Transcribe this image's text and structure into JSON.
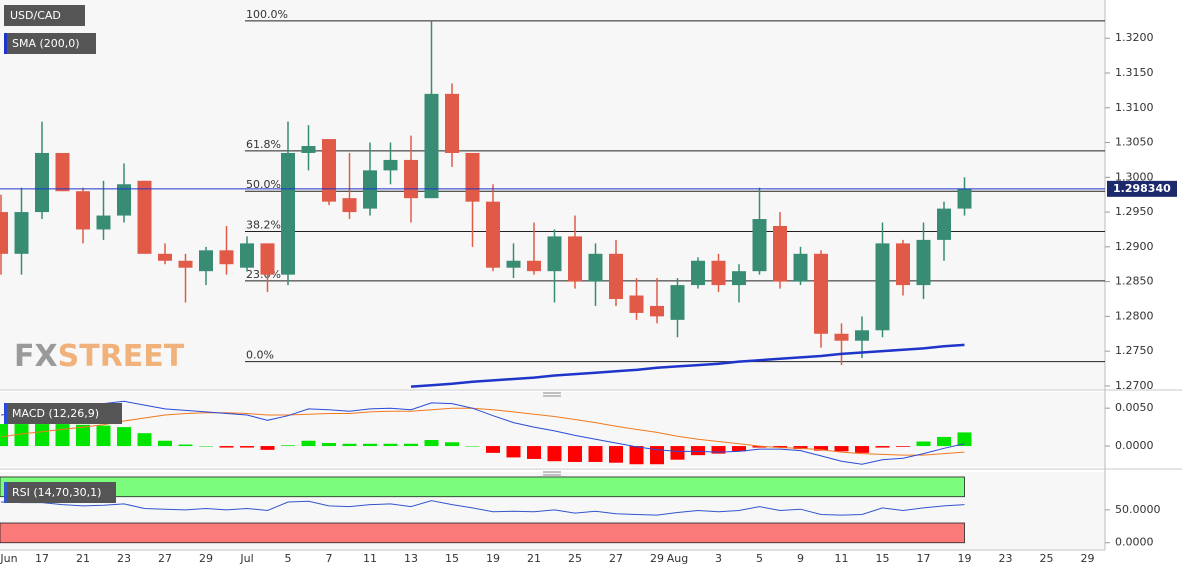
{
  "chart_data": [
    {
      "type": "candlestick",
      "title": "USD/CAD",
      "categories": [
        "Jun",
        null,
        "17",
        null,
        "21",
        null,
        "23",
        null,
        "27",
        null,
        "29",
        null,
        "Jul",
        null,
        "5",
        null,
        "7",
        null,
        "11",
        null,
        "13",
        null,
        "15",
        null,
        "19",
        null,
        "21",
        null,
        "25",
        null,
        "27",
        null,
        "29",
        "Aug",
        null,
        "3",
        null,
        "5",
        null,
        "9",
        null,
        "11",
        null,
        "15",
        null,
        "17",
        null,
        "19",
        null,
        "23",
        null,
        "25",
        null,
        "29"
      ],
      "open": [
        1.295,
        1.289,
        1.295,
        1.3035,
        1.298,
        1.2925,
        1.2945,
        1.2995,
        1.289,
        1.288,
        1.2865,
        1.2895,
        1.287,
        1.2905,
        1.286,
        1.3035,
        1.3055,
        1.297,
        1.2955,
        1.301,
        1.3025,
        1.297,
        1.312,
        1.3035,
        1.2965,
        1.287,
        1.288,
        1.2865,
        1.2915,
        1.285,
        1.289,
        1.283,
        1.2815,
        1.2795,
        1.2845,
        1.288,
        1.2845,
        1.2865,
        1.293,
        1.285,
        1.289,
        1.2775,
        1.2765,
        1.278,
        1.2905,
        1.2845,
        1.291,
        1.2955,
        null,
        null,
        null,
        null,
        null,
        null
      ],
      "high": [
        1.2975,
        1.2985,
        1.308,
        1.3035,
        1.2985,
        1.2995,
        1.302,
        1.2995,
        1.2905,
        1.289,
        1.29,
        1.293,
        1.2915,
        1.2905,
        1.308,
        1.3075,
        1.3055,
        1.3035,
        1.305,
        1.305,
        1.306,
        1.3225,
        1.3135,
        1.3035,
        1.299,
        1.2905,
        1.2935,
        1.2925,
        1.2945,
        1.2905,
        1.291,
        1.2855,
        1.2855,
        1.2855,
        1.2885,
        1.289,
        1.2875,
        1.2985,
        1.295,
        1.29,
        1.2895,
        1.279,
        1.28,
        1.2935,
        1.291,
        1.2935,
        1.2965,
        1.3,
        null,
        null,
        null,
        null,
        null,
        null
      ],
      "low": [
        1.286,
        1.286,
        1.294,
        1.298,
        1.2905,
        1.291,
        1.2935,
        1.289,
        1.2875,
        1.282,
        1.2845,
        1.286,
        1.2865,
        1.2835,
        1.2845,
        1.301,
        1.296,
        1.294,
        1.2945,
        1.299,
        1.2935,
        1.297,
        1.3015,
        1.29,
        1.2865,
        1.2855,
        1.286,
        1.282,
        1.284,
        1.2815,
        1.2815,
        1.2795,
        1.279,
        1.277,
        1.284,
        1.2835,
        1.282,
        1.286,
        1.284,
        1.2845,
        1.2755,
        1.273,
        1.274,
        1.277,
        1.283,
        1.2825,
        1.288,
        1.2945,
        null,
        null,
        null,
        null,
        null,
        null
      ],
      "close": [
        1.289,
        1.295,
        1.3035,
        1.298,
        1.2925,
        1.2945,
        1.299,
        1.289,
        1.288,
        1.287,
        1.2895,
        1.2875,
        1.2905,
        1.286,
        1.3035,
        1.3045,
        1.2965,
        1.295,
        1.301,
        1.3025,
        1.297,
        1.312,
        1.3035,
        1.2965,
        1.287,
        1.288,
        1.2865,
        1.2915,
        1.285,
        1.289,
        1.2825,
        1.2805,
        1.28,
        1.2845,
        1.288,
        1.2845,
        1.2865,
        1.294,
        1.285,
        1.289,
        1.2775,
        1.2765,
        1.278,
        1.2905,
        1.2845,
        1.291,
        1.2955,
        1.29834,
        null,
        null,
        null,
        null,
        null,
        null
      ],
      "up_color": "#388c73",
      "down_color": "#e05a47",
      "series": [
        {
          "name": "SMA (200,0)",
          "color": "#1f35c9",
          "values": [
            null,
            null,
            null,
            null,
            null,
            null,
            null,
            null,
            null,
            null,
            null,
            null,
            null,
            null,
            null,
            null,
            null,
            null,
            null,
            null,
            1.2699,
            1.2701,
            1.2703,
            1.2706,
            1.2708,
            1.271,
            1.2712,
            1.2715,
            1.2717,
            1.2719,
            1.2721,
            1.2723,
            1.2726,
            1.2728,
            1.273,
            1.2732,
            1.2735,
            1.2737,
            1.2739,
            1.2741,
            1.2743,
            1.2746,
            1.2748,
            1.275,
            1.2752,
            1.2754,
            1.2757,
            1.2759,
            null,
            null,
            null,
            null,
            null,
            null
          ]
        }
      ],
      "fib_levels": [
        {
          "value": 1.3225,
          "label": "100.0%"
        },
        {
          "value": 1.3038,
          "label": "61.8%"
        },
        {
          "value": 1.298,
          "label": "50.0%"
        },
        {
          "value": 1.2922,
          "label": "38.2%"
        },
        {
          "value": 1.2851,
          "label": "23.6%"
        },
        {
          "value": 1.2735,
          "label": "0.0%"
        }
      ],
      "last_price": {
        "value": 1.29834,
        "label": "1.298340"
      },
      "ylim": [
        1.2697,
        1.3255
      ],
      "yticks": [
        {
          "value": 1.27,
          "label": "1.2700"
        },
        {
          "value": 1.275,
          "label": "1.2750"
        },
        {
          "value": 1.28,
          "label": "1.2800"
        },
        {
          "value": 1.285,
          "label": "1.2850"
        },
        {
          "value": 1.29,
          "label": "1.2900"
        },
        {
          "value": 1.295,
          "label": "1.2950"
        },
        {
          "value": 1.3,
          "label": "1.3000"
        },
        {
          "value": 1.305,
          "label": "1.3050"
        },
        {
          "value": 1.31,
          "label": "1.3100"
        },
        {
          "value": 1.315,
          "label": "1.3150"
        },
        {
          "value": 1.32,
          "label": "1.3200"
        }
      ]
    },
    {
      "type": "macd",
      "title": "MACD (12,26,9)",
      "histogram": {
        "up_color": "#00e400",
        "down_color": "#ff0000",
        "values": [
          0.0029,
          0.0029,
          0.0029,
          0.0029,
          0.0028,
          0.0027,
          0.0025,
          0.0017,
          0.0007,
          0.0002,
          0.0,
          -0.0002,
          -0.0002,
          -0.0005,
          0.0001,
          0.0007,
          0.0004,
          0.0003,
          0.0003,
          0.0003,
          0.0003,
          0.0008,
          0.0005,
          0.0,
          -0.0009,
          -0.0015,
          -0.0017,
          -0.002,
          -0.0021,
          -0.0021,
          -0.0022,
          -0.0024,
          -0.0024,
          -0.0018,
          -0.0012,
          -0.001,
          -0.0007,
          -0.0002,
          -0.0002,
          -0.0004,
          -0.0006,
          -0.0007,
          -0.0009,
          -0.0002,
          -0.0001,
          0.0006,
          0.0012,
          0.0018,
          null,
          null,
          null,
          null,
          null,
          null
        ]
      },
      "macd": {
        "color": "#2a4bd7",
        "values": [
          0.0041,
          0.0044,
          0.0046,
          0.005,
          0.0053,
          0.0056,
          0.0059,
          0.0054,
          0.0049,
          0.0047,
          0.0045,
          0.0043,
          0.0041,
          0.0034,
          0.004,
          0.0049,
          0.0048,
          0.0046,
          0.0049,
          0.005,
          0.0048,
          0.0057,
          0.0056,
          0.005,
          0.004,
          0.0031,
          0.0025,
          0.002,
          0.0014,
          0.0009,
          0.0004,
          -0.0001,
          -0.0005,
          -0.0007,
          -0.0007,
          -0.0008,
          -0.0007,
          -0.0004,
          -0.0004,
          -0.0006,
          -0.0013,
          -0.002,
          -0.0024,
          -0.0018,
          -0.0016,
          -0.001,
          -0.0003,
          0.0003,
          null,
          null,
          null,
          null,
          null,
          null
        ]
      },
      "signal": {
        "color": "#f07a20",
        "values": [
          0.0012,
          0.0016,
          0.0019,
          0.0022,
          0.0025,
          0.0028,
          0.0033,
          0.0037,
          0.0041,
          0.0043,
          0.0044,
          0.0044,
          0.0043,
          0.0041,
          0.0041,
          0.0042,
          0.0043,
          0.0043,
          0.0045,
          0.0046,
          0.0046,
          0.0048,
          0.005,
          0.005,
          0.0048,
          0.0045,
          0.0042,
          0.0039,
          0.0035,
          0.0031,
          0.0026,
          0.0022,
          0.0018,
          0.0013,
          0.0009,
          0.0006,
          0.0003,
          0.0,
          -0.0002,
          -0.0003,
          -0.0005,
          -0.0008,
          -0.001,
          -0.0011,
          -0.0012,
          -0.0012,
          -0.001,
          -0.0008,
          null,
          null,
          null,
          null,
          null,
          null
        ]
      },
      "ylim": [
        -0.0025,
        0.007
      ],
      "yticks": [
        {
          "value": 0.0,
          "label": "0.0000"
        },
        {
          "value": 0.005,
          "label": "0.0050"
        }
      ]
    },
    {
      "type": "line",
      "title": "RSI (14,70,30,1)",
      "color": "#3355cc",
      "values": [
        62,
        61,
        61,
        58,
        56,
        57,
        59,
        52,
        51,
        50,
        52,
        50,
        52,
        49,
        62,
        63,
        56,
        55,
        58,
        59,
        55,
        64,
        58,
        53,
        47,
        48,
        47,
        50,
        45,
        48,
        44,
        43,
        42,
        46,
        49,
        47,
        49,
        55,
        49,
        51,
        43,
        42,
        43,
        53,
        49,
        53,
        56,
        58,
        null,
        null,
        null,
        null,
        null,
        null
      ],
      "overbought": 70,
      "oversold": 30,
      "band_top": 100,
      "band_bottom": 0,
      "overbought_color": "#7cfc7c",
      "oversold_color": "#fa7a7a",
      "ylim": [
        -8,
        103
      ],
      "yticks": [
        {
          "value": 0,
          "label": "0.0000"
        },
        {
          "value": 50,
          "label": "50.0000"
        }
      ]
    }
  ],
  "watermark": [
    "FX",
    "STREET"
  ]
}
